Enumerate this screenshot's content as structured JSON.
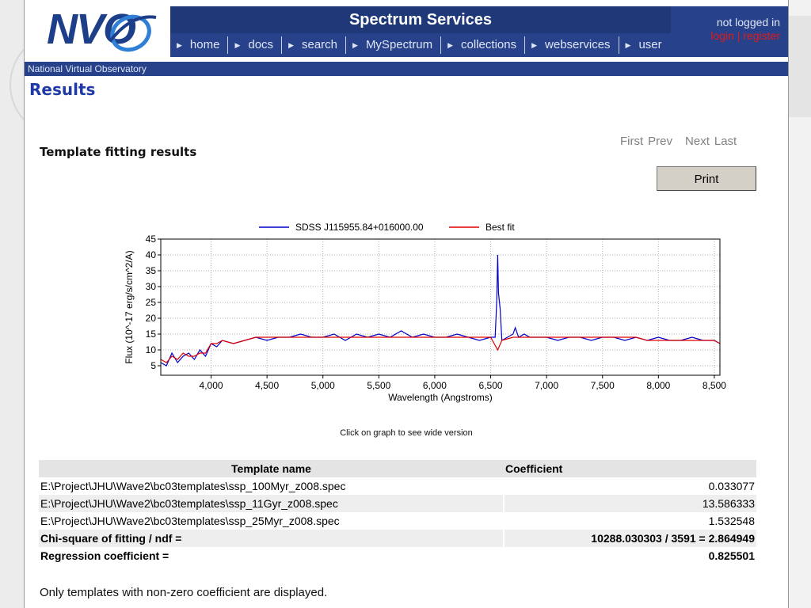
{
  "header": {
    "logo_text": "NVO",
    "caption": "National Virtual Observatory",
    "title": "Spectrum Services",
    "nav": [
      "home",
      "docs",
      "search",
      "MySpectrum",
      "collections",
      "webservices",
      "user"
    ],
    "login_status": "not logged in",
    "login_label": "login",
    "login_sep": "|",
    "register_label": "register"
  },
  "main": {
    "page_heading": "Results",
    "section_heading": "Template fitting results",
    "pager": {
      "first": "First",
      "prev": "Prev",
      "next": "Next",
      "last": "Last"
    },
    "print_label": "Print",
    "chart_note": "Click on graph to see wide version",
    "footer_note": "Only templates with non-zero coefficient are displayed."
  },
  "chart_data": {
    "type": "line",
    "xlabel": "Wavelength (Angstroms)",
    "ylabel": "Flux (10^-17 erg/s/cm^2/A)",
    "xlim": [
      3550,
      8550
    ],
    "ylim": [
      2,
      45
    ],
    "xticks": [
      4000,
      4500,
      5000,
      5500,
      6000,
      6500,
      7000,
      7500,
      8000,
      8500
    ],
    "xtick_labels": [
      "4,000",
      "4,500",
      "5,000",
      "5,500",
      "6,000",
      "6,500",
      "7,000",
      "7,500",
      "8,000",
      "8,500"
    ],
    "yticks": [
      5,
      10,
      15,
      20,
      25,
      30,
      35,
      40,
      45
    ],
    "grid": true,
    "legend_position": "top",
    "series": [
      {
        "name": "SDSS J115955.84+016000.00",
        "color": "#0000cc",
        "x": [
          3550,
          3600,
          3650,
          3700,
          3750,
          3800,
          3850,
          3900,
          3950,
          4000,
          4050,
          4100,
          4200,
          4300,
          4400,
          4500,
          4600,
          4700,
          4800,
          4900,
          5000,
          5100,
          5200,
          5300,
          5400,
          5500,
          5600,
          5700,
          5800,
          5900,
          6000,
          6100,
          6200,
          6300,
          6400,
          6500,
          6540,
          6555,
          6563,
          6570,
          6585,
          6600,
          6650,
          6700,
          6720,
          6750,
          6800,
          6850,
          6900,
          7000,
          7100,
          7200,
          7300,
          7400,
          7500,
          7600,
          7700,
          7800,
          7900,
          8000,
          8100,
          8200,
          8300,
          8400,
          8500,
          8550
        ],
        "y": [
          6,
          5,
          9,
          6,
          8,
          9,
          7,
          10,
          8,
          12,
          11,
          13,
          12,
          13,
          14,
          13,
          14,
          14,
          15,
          14,
          14,
          15,
          13,
          15,
          14,
          15,
          14,
          16,
          14,
          15,
          14,
          14,
          15,
          14,
          13,
          14,
          14,
          26,
          40,
          28,
          23,
          13,
          14,
          15,
          17,
          14,
          15,
          14,
          14,
          14,
          13,
          14,
          14,
          13,
          14,
          14,
          13,
          14,
          13,
          14,
          13,
          13,
          14,
          13,
          13,
          12
        ]
      },
      {
        "name": "Best fit",
        "color": "#e00000",
        "x": [
          3550,
          3600,
          3650,
          3700,
          3750,
          3800,
          3850,
          3900,
          3950,
          4000,
          4050,
          4100,
          4200,
          4300,
          4400,
          4500,
          4600,
          4700,
          4800,
          4900,
          5000,
          5100,
          5200,
          5300,
          5400,
          5500,
          5600,
          5700,
          5800,
          5900,
          6000,
          6100,
          6200,
          6300,
          6400,
          6500,
          6563,
          6600,
          6700,
          6800,
          6900,
          7000,
          7100,
          7200,
          7300,
          7400,
          7500,
          7600,
          7700,
          7800,
          7900,
          8000,
          8100,
          8200,
          8300,
          8400,
          8500,
          8550
        ],
        "y": [
          7,
          6,
          8,
          7,
          9,
          8,
          8,
          9,
          9,
          12,
          12,
          13,
          12,
          13,
          14,
          14,
          14,
          14,
          14,
          14,
          14,
          14,
          14,
          14,
          14,
          14,
          14,
          14,
          14,
          14,
          14,
          14,
          14,
          14,
          14,
          14,
          10,
          13,
          14,
          14,
          14,
          14,
          14,
          14,
          14,
          14,
          14,
          14,
          14,
          14,
          13,
          13,
          13,
          13,
          13,
          13,
          13,
          12
        ]
      }
    ]
  },
  "table": {
    "headers": {
      "name": "Template name",
      "coefficient": "Coefficient"
    },
    "rows": [
      {
        "name": "E:\\Project\\JHU\\Wave2\\bc03templates\\ssp_100Myr_z008.spec",
        "coefficient": "0.033077"
      },
      {
        "name": "E:\\Project\\JHU\\Wave2\\bc03templates\\ssp_11Gyr_z008.spec",
        "coefficient": "13.586333"
      },
      {
        "name": "E:\\Project\\JHU\\Wave2\\bc03templates\\ssp_25Myr_z008.spec",
        "coefficient": "1.532548"
      }
    ],
    "stats": [
      {
        "name": "Chi-square of fitting / ndf =",
        "coefficient": "10288.030303 / 3591 = 2.864949"
      },
      {
        "name": "Regression coefficient =",
        "coefficient": "0.825501"
      }
    ]
  }
}
